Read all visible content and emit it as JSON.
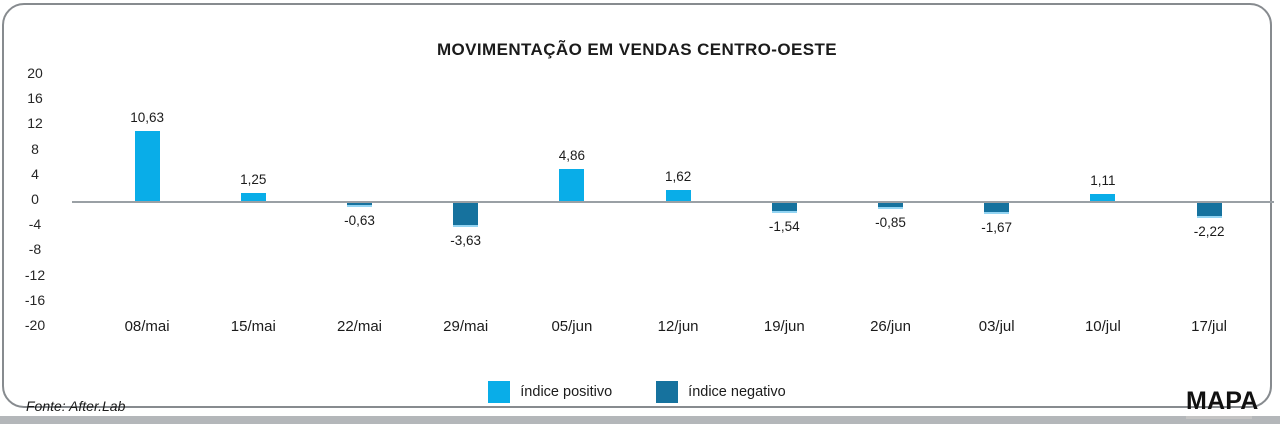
{
  "chart_data": {
    "type": "bar",
    "title": "MOVIMENTAÇÃO EM VENDAS CENTRO-OESTE",
    "categories": [
      "08/mai",
      "15/mai",
      "22/mai",
      "29/mai",
      "05/jun",
      "12/jun",
      "19/jun",
      "26/jun",
      "03/jul",
      "10/jul",
      "17/jul"
    ],
    "values": [
      10.63,
      1.25,
      -0.63,
      -3.63,
      4.86,
      1.62,
      -1.54,
      -0.85,
      -1.67,
      1.11,
      -2.22
    ],
    "value_labels": [
      "10,63",
      "1,25",
      "-0,63",
      "-3,63",
      "4,86",
      "1,62",
      "-1,54",
      "-0,85",
      "-1,67",
      "1,11",
      "-2,22"
    ],
    "xlabel": "",
    "ylabel": "",
    "y_ticks": [
      20,
      16,
      12,
      8,
      4,
      0,
      -4,
      -8,
      -12,
      -16,
      -20
    ],
    "ylim": [
      -20,
      20
    ],
    "grid": false,
    "legend_position": "bottom-center",
    "number_format": "decimal comma (pt-BR)",
    "series_colors": {
      "positive": "#09ade8",
      "negative": "#16729e"
    },
    "legend": [
      {
        "label": "índice positivo",
        "series": "positive"
      },
      {
        "label": "índice negativo",
        "series": "negative"
      }
    ]
  },
  "footer": {
    "source": "Fonte: After.Lab",
    "logo": "MAPA"
  },
  "colors": {
    "axis_line": "#9aa0a5",
    "card_border": "#878b8f",
    "bottom_strip": "#b4b7ba",
    "text": "#1b1b1b"
  }
}
